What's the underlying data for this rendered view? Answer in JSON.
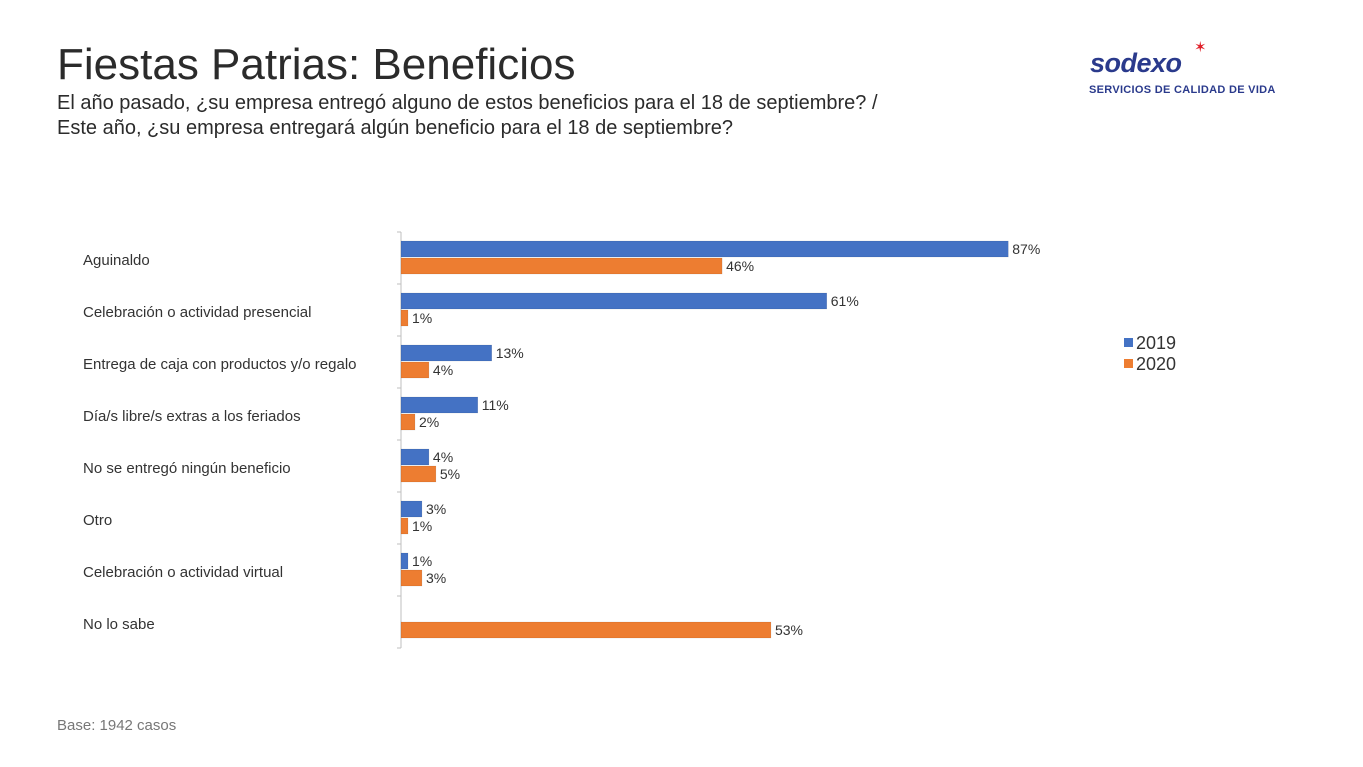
{
  "header": {
    "title": "Fiestas Patrias: Beneficios",
    "subtitle_line1": "El año pasado, ¿su empresa entregó alguno de estos beneficios para el 18 de septiembre? /",
    "subtitle_line2": "Este año, ¿su empresa entregará algún beneficio para el 18 de septiembre?"
  },
  "logo": {
    "wordmark": "sodexo",
    "tagline": "SERVICIOS DE CALIDAD DE VIDA",
    "star_color": "#e0202a",
    "brand_color": "#2a3a8c"
  },
  "chart_data": {
    "type": "bar",
    "orientation": "horizontal",
    "categories": [
      "Aguinaldo",
      "Celebración o actividad presencial",
      "Entrega de caja con productos y/o regalo",
      "Día/s libre/s extras a los feriados",
      "No se entregó ningún beneficio",
      "Otro",
      "Celebración o actividad virtual",
      "No lo sabe"
    ],
    "series": [
      {
        "name": "2019",
        "color": "#4472c4",
        "values": [
          87,
          61,
          13,
          11,
          4,
          3,
          1,
          null
        ],
        "labels": [
          "87%",
          "61%",
          "13%",
          "11%",
          "4%",
          "3%",
          "1%",
          ""
        ]
      },
      {
        "name": "2020",
        "color": "#ed7d31",
        "values": [
          46,
          1,
          4,
          2,
          5,
          1,
          3,
          53
        ],
        "labels": [
          "46%",
          "1%",
          "4%",
          "2%",
          "5%",
          "1%",
          "3%",
          "53%"
        ]
      }
    ],
    "xlim": [
      0,
      100
    ],
    "unit": "%",
    "grid": false,
    "legend_position": "right"
  },
  "footer": {
    "note": "Base: 1942 casos"
  }
}
